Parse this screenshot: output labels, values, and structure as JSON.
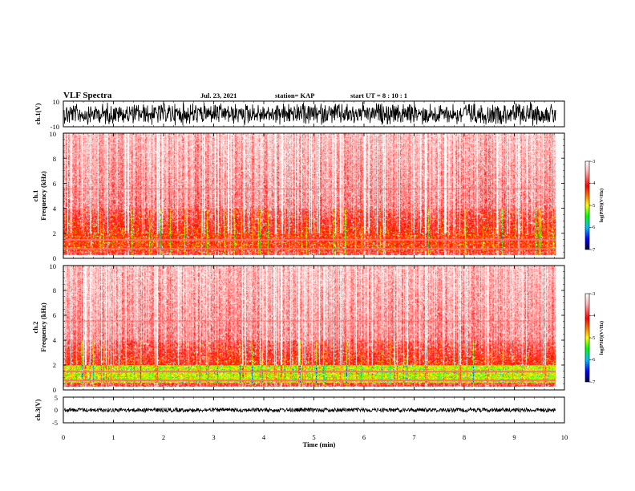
{
  "header": {
    "title": "VLF Spectra",
    "date": "Jul. 23, 2021",
    "station": "station= KAP",
    "start": "start  UT =  8 : 10 : 1"
  },
  "chart_data": [
    {
      "type": "line",
      "ylabel": "ch.1(V)",
      "ylim": [
        -10,
        10
      ],
      "y_tick_labels": [
        "10",
        "-10"
      ],
      "xlim": [
        0,
        10
      ],
      "description_series": "waveform"
    },
    {
      "type": "heatmap",
      "ylabel_top": "ch.1",
      "ylabel": "Frequency (kHz)",
      "ylim": [
        0,
        10
      ],
      "y_tick_labels": [
        "0",
        "2",
        "4",
        "6",
        "8",
        "10"
      ],
      "xlim": [
        0,
        10
      ],
      "colorbar": {
        "label": "log(PSD)(V²/Hz)",
        "range": [
          -7,
          -3
        ],
        "tick_labels": [
          "-3",
          "-4",
          "-5",
          "-6",
          "-7"
        ]
      }
    },
    {
      "type": "heatmap",
      "ylabel_top": "ch.2",
      "ylabel": "Frequency (kHz)",
      "ylim": [
        0,
        10
      ],
      "y_tick_labels": [
        "0",
        "2",
        "4",
        "6",
        "8",
        "10"
      ],
      "xlim": [
        0,
        10
      ],
      "colorbar": {
        "label": "log(PSD)(V²/Hz)",
        "range": [
          -7,
          -3
        ],
        "tick_labels": [
          "-3",
          "-4",
          "-5",
          "-6",
          "-7"
        ]
      }
    },
    {
      "type": "line",
      "ylabel": "ch.3(V)",
      "ylim": [
        -5,
        5
      ],
      "y_tick_labels": [
        "5",
        "0",
        "-5"
      ],
      "xlim": [
        0,
        10
      ],
      "x_tick_labels": [
        "0",
        "1",
        "2",
        "3",
        "4",
        "5",
        "6",
        "7",
        "8",
        "9",
        "10"
      ],
      "xlabel": "Time (min)"
    }
  ]
}
